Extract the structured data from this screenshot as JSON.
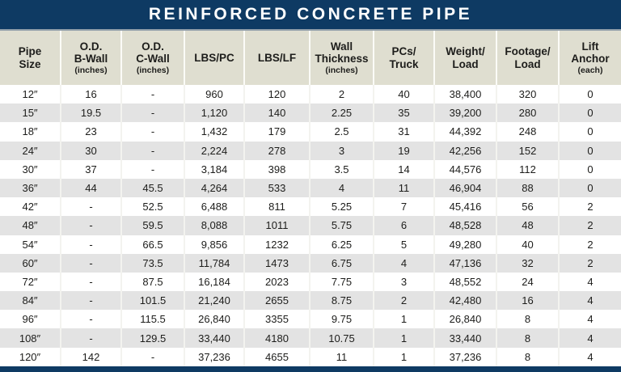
{
  "colors": {
    "navy": "#0e3a63",
    "divider": "#93a0ab",
    "header_bg": "#dfded0",
    "row_alt": "#e3e3e3",
    "text": "#1d1d1b",
    "title_text": "#ffffff"
  },
  "chart_data": {
    "type": "table",
    "title": "REINFORCED CONCRETE PIPE",
    "columns": [
      {
        "label": "Pipe\nSize",
        "sub": ""
      },
      {
        "label": "O.D.\nB-Wall",
        "sub": "(inches)"
      },
      {
        "label": "O.D.\nC-Wall",
        "sub": "(inches)"
      },
      {
        "label": "LBS/PC",
        "sub": ""
      },
      {
        "label": "LBS/LF",
        "sub": ""
      },
      {
        "label": "Wall\nThickness",
        "sub": "(inches)"
      },
      {
        "label": "PCs/\nTruck",
        "sub": ""
      },
      {
        "label": "Weight/\nLoad",
        "sub": ""
      },
      {
        "label": "Footage/\nLoad",
        "sub": ""
      },
      {
        "label": "Lift\nAnchor",
        "sub": "(each)"
      }
    ],
    "rows": [
      [
        "12″",
        "16",
        "-",
        "960",
        "120",
        "2",
        "40",
        "38,400",
        "320",
        "0"
      ],
      [
        "15″",
        "19.5",
        "-",
        "1,120",
        "140",
        "2.25",
        "35",
        "39,200",
        "280",
        "0"
      ],
      [
        "18″",
        "23",
        "-",
        "1,432",
        "179",
        "2.5",
        "31",
        "44,392",
        "248",
        "0"
      ],
      [
        "24″",
        "30",
        "-",
        "2,224",
        "278",
        "3",
        "19",
        "42,256",
        "152",
        "0"
      ],
      [
        "30″",
        "37",
        "-",
        "3,184",
        "398",
        "3.5",
        "14",
        "44,576",
        "112",
        "0"
      ],
      [
        "36″",
        "44",
        "45.5",
        "4,264",
        "533",
        "4",
        "11",
        "46,904",
        "88",
        "0"
      ],
      [
        "42″",
        "-",
        "52.5",
        "6,488",
        "811",
        "5.25",
        "7",
        "45,416",
        "56",
        "2"
      ],
      [
        "48″",
        "-",
        "59.5",
        "8,088",
        "1011",
        "5.75",
        "6",
        "48,528",
        "48",
        "2"
      ],
      [
        "54″",
        "-",
        "66.5",
        "9,856",
        "1232",
        "6.25",
        "5",
        "49,280",
        "40",
        "2"
      ],
      [
        "60″",
        "-",
        "73.5",
        "11,784",
        "1473",
        "6.75",
        "4",
        "47,136",
        "32",
        "2"
      ],
      [
        "72″",
        "-",
        "87.5",
        "16,184",
        "2023",
        "7.75",
        "3",
        "48,552",
        "24",
        "4"
      ],
      [
        "84″",
        "-",
        "101.5",
        "21,240",
        "2655",
        "8.75",
        "2",
        "42,480",
        "16",
        "4"
      ],
      [
        "96″",
        "-",
        "115.5",
        "26,840",
        "3355",
        "9.75",
        "1",
        "26,840",
        "8",
        "4"
      ],
      [
        "108″",
        "-",
        "129.5",
        "33,440",
        "4180",
        "10.75",
        "1",
        "33,440",
        "8",
        "4"
      ],
      [
        "120″",
        "142",
        "-",
        "37,236",
        "4655",
        "11",
        "1",
        "37,236",
        "8",
        "4"
      ]
    ]
  }
}
